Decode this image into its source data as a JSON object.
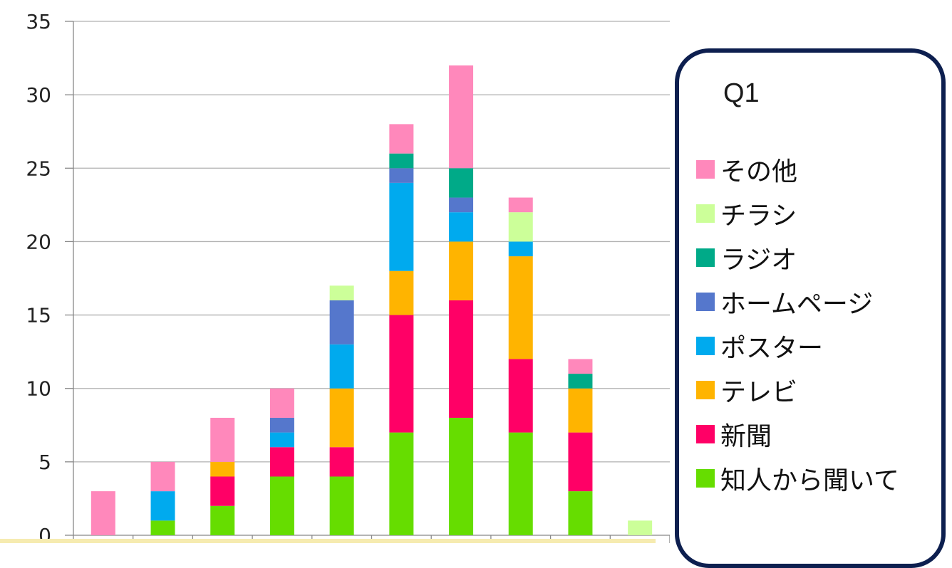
{
  "chart_data": {
    "type": "bar",
    "stacked": true,
    "categories": [
      "",
      "",
      "",
      "",
      "",
      "",
      "",
      "",
      "",
      ""
    ],
    "ylim": [
      0,
      35
    ],
    "yticks": [
      0,
      5,
      10,
      15,
      20,
      25,
      30,
      35
    ],
    "grid": true,
    "legend_title": "Q1",
    "legend_position": "right",
    "series": [
      {
        "name": "知人から聞いて",
        "color": "#66dd00",
        "values": [
          0,
          1,
          2,
          4,
          4,
          7,
          8,
          7,
          3,
          0
        ]
      },
      {
        "name": "新聞",
        "color": "#ff0066",
        "values": [
          0,
          0,
          2,
          2,
          2,
          8,
          8,
          5,
          4,
          0
        ]
      },
      {
        "name": "テレビ",
        "color": "#ffb400",
        "values": [
          0,
          0,
          1,
          0,
          4,
          3,
          4,
          7,
          3,
          0
        ]
      },
      {
        "name": "ポスター",
        "color": "#00aaee",
        "values": [
          0,
          2,
          0,
          1,
          3,
          6,
          2,
          1,
          0,
          0
        ]
      },
      {
        "name": "ホームページ",
        "color": "#5577cc",
        "values": [
          0,
          0,
          0,
          1,
          3,
          1,
          1,
          0,
          0,
          0
        ]
      },
      {
        "name": "ラジオ",
        "color": "#00aa88",
        "values": [
          0,
          0,
          0,
          0,
          0,
          1,
          2,
          0,
          1,
          0
        ]
      },
      {
        "name": "チラシ",
        "color": "#ccff99",
        "values": [
          0,
          0,
          0,
          0,
          1,
          0,
          0,
          2,
          0,
          1
        ]
      },
      {
        "name": "その他",
        "color": "#ff88bb",
        "values": [
          3,
          2,
          3,
          2,
          0,
          2,
          7,
          1,
          1,
          0
        ]
      }
    ]
  }
}
